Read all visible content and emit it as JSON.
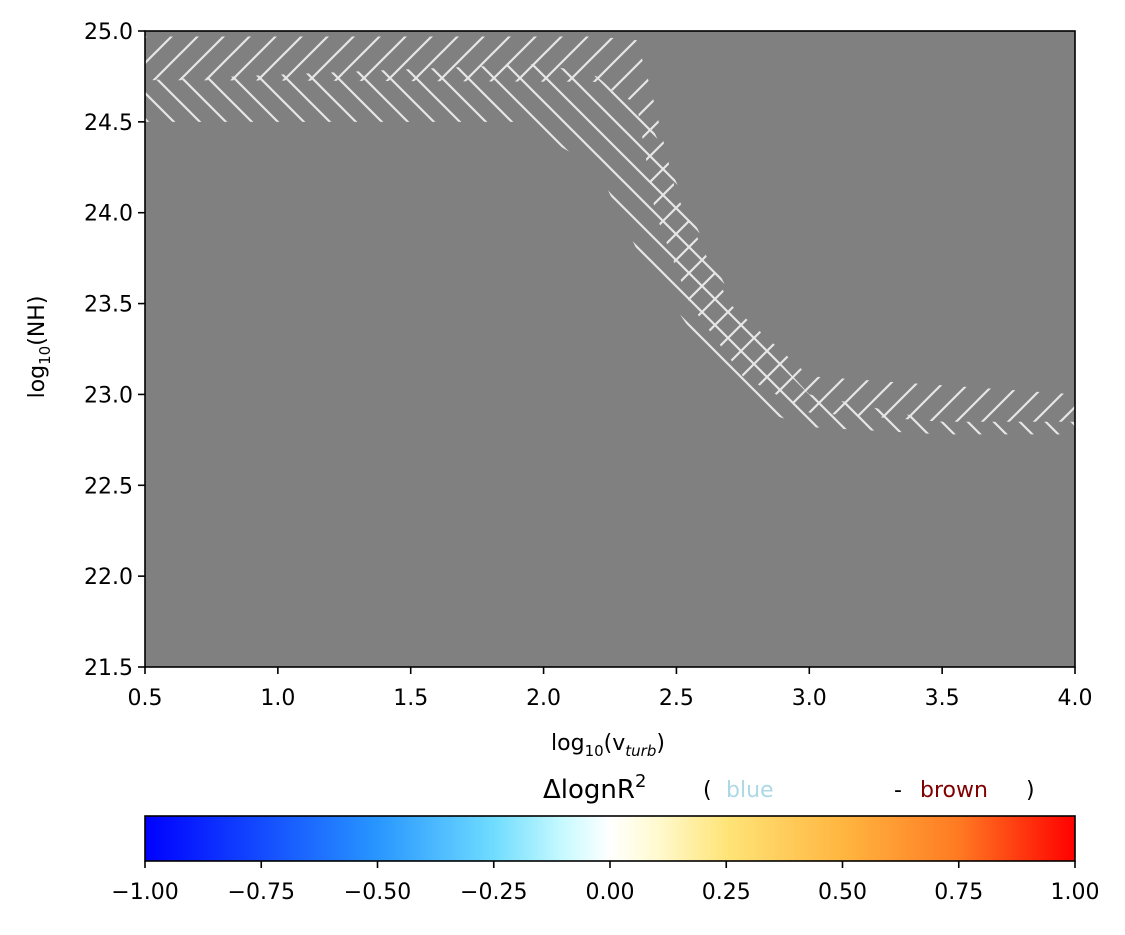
{
  "chart_data": {
    "type": "heatmap",
    "background_color": "#808080",
    "hatch_color": "#e6e6e6",
    "x": {
      "label_base": "log",
      "label_sub": "10",
      "label_arg_open": "(v",
      "label_arg_sub": "turb",
      "label_close": ")",
      "lim": [
        0.5,
        4.0
      ],
      "ticks": [
        0.5,
        1.0,
        1.5,
        2.0,
        2.5,
        3.0,
        3.5,
        4.0
      ],
      "tick_labels": [
        "0.5",
        "1.0",
        "1.5",
        "2.0",
        "2.5",
        "3.0",
        "3.5",
        "4.0"
      ]
    },
    "y": {
      "label_base": "log",
      "label_sub": "10",
      "label_arg": "(NH)",
      "lim": [
        21.5,
        25.0
      ],
      "ticks": [
        21.5,
        22.0,
        22.5,
        23.0,
        23.5,
        24.0,
        24.5,
        25.0
      ],
      "tick_labels": [
        "21.5",
        "22.0",
        "22.5",
        "23.0",
        "23.5",
        "24.0",
        "24.5",
        "25.0"
      ]
    },
    "hatched_bands": [
      {
        "hatch": "forward-slash",
        "upper": [
          [
            0.5,
            24.97
          ],
          [
            2.2,
            24.97
          ],
          [
            2.35,
            24.95
          ],
          [
            2.4,
            24.7
          ],
          [
            2.5,
            24.1
          ],
          [
            2.7,
            23.5
          ],
          [
            3.0,
            23.1
          ],
          [
            3.5,
            23.05
          ],
          [
            4.0,
            23.0
          ]
        ],
        "lower": [
          [
            4.0,
            22.85
          ],
          [
            3.5,
            22.85
          ],
          [
            3.0,
            22.9
          ],
          [
            2.75,
            23.1
          ],
          [
            2.55,
            23.5
          ],
          [
            2.42,
            24.0
          ],
          [
            2.35,
            24.6
          ],
          [
            2.2,
            24.72
          ],
          [
            0.5,
            24.73
          ]
        ]
      },
      {
        "hatch": "back-slash",
        "upper": [
          [
            0.5,
            24.73
          ],
          [
            2.0,
            24.82
          ],
          [
            2.2,
            24.75
          ],
          [
            2.4,
            24.5
          ],
          [
            2.55,
            24.0
          ],
          [
            2.75,
            23.4
          ],
          [
            3.0,
            23.0
          ],
          [
            3.5,
            22.85
          ],
          [
            4.0,
            22.85
          ]
        ],
        "lower": [
          [
            4.0,
            22.78
          ],
          [
            3.5,
            22.78
          ],
          [
            3.0,
            22.82
          ],
          [
            2.8,
            22.92
          ],
          [
            2.6,
            23.25
          ],
          [
            2.35,
            23.8
          ],
          [
            2.2,
            24.25
          ],
          [
            1.9,
            24.5
          ],
          [
            0.5,
            24.5
          ]
        ]
      }
    ],
    "colorbar": {
      "title_main": "ΔlognR",
      "title_sup": "2",
      "title_open": "(",
      "title_blue": "blue",
      "title_dash": "-",
      "title_brown": "brown",
      "title_close": ")",
      "title_blue_color": "#add8e6",
      "title_brown_color": "#800000",
      "range": [
        -1.0,
        1.0
      ],
      "ticks": [
        -1.0,
        -0.75,
        -0.5,
        -0.25,
        0.0,
        0.25,
        0.5,
        0.75,
        1.0
      ],
      "tick_labels": [
        "−1.00",
        "−0.75",
        "−0.50",
        "−0.25",
        "0.00",
        "0.25",
        "0.50",
        "0.75",
        "1.00"
      ],
      "stops": [
        {
          "value": -1.0,
          "color": "#0000ff"
        },
        {
          "value": -0.5,
          "color": "#2896ff"
        },
        {
          "value": -0.25,
          "color": "#6fdcff"
        },
        {
          "value": -0.1,
          "color": "#c8faff"
        },
        {
          "value": 0.0,
          "color": "#ffffff"
        },
        {
          "value": 0.1,
          "color": "#fffad0"
        },
        {
          "value": 0.25,
          "color": "#ffe478"
        },
        {
          "value": 0.5,
          "color": "#ffb640"
        },
        {
          "value": 0.75,
          "color": "#ff7a22"
        },
        {
          "value": 1.0,
          "color": "#ff0000"
        }
      ]
    }
  }
}
